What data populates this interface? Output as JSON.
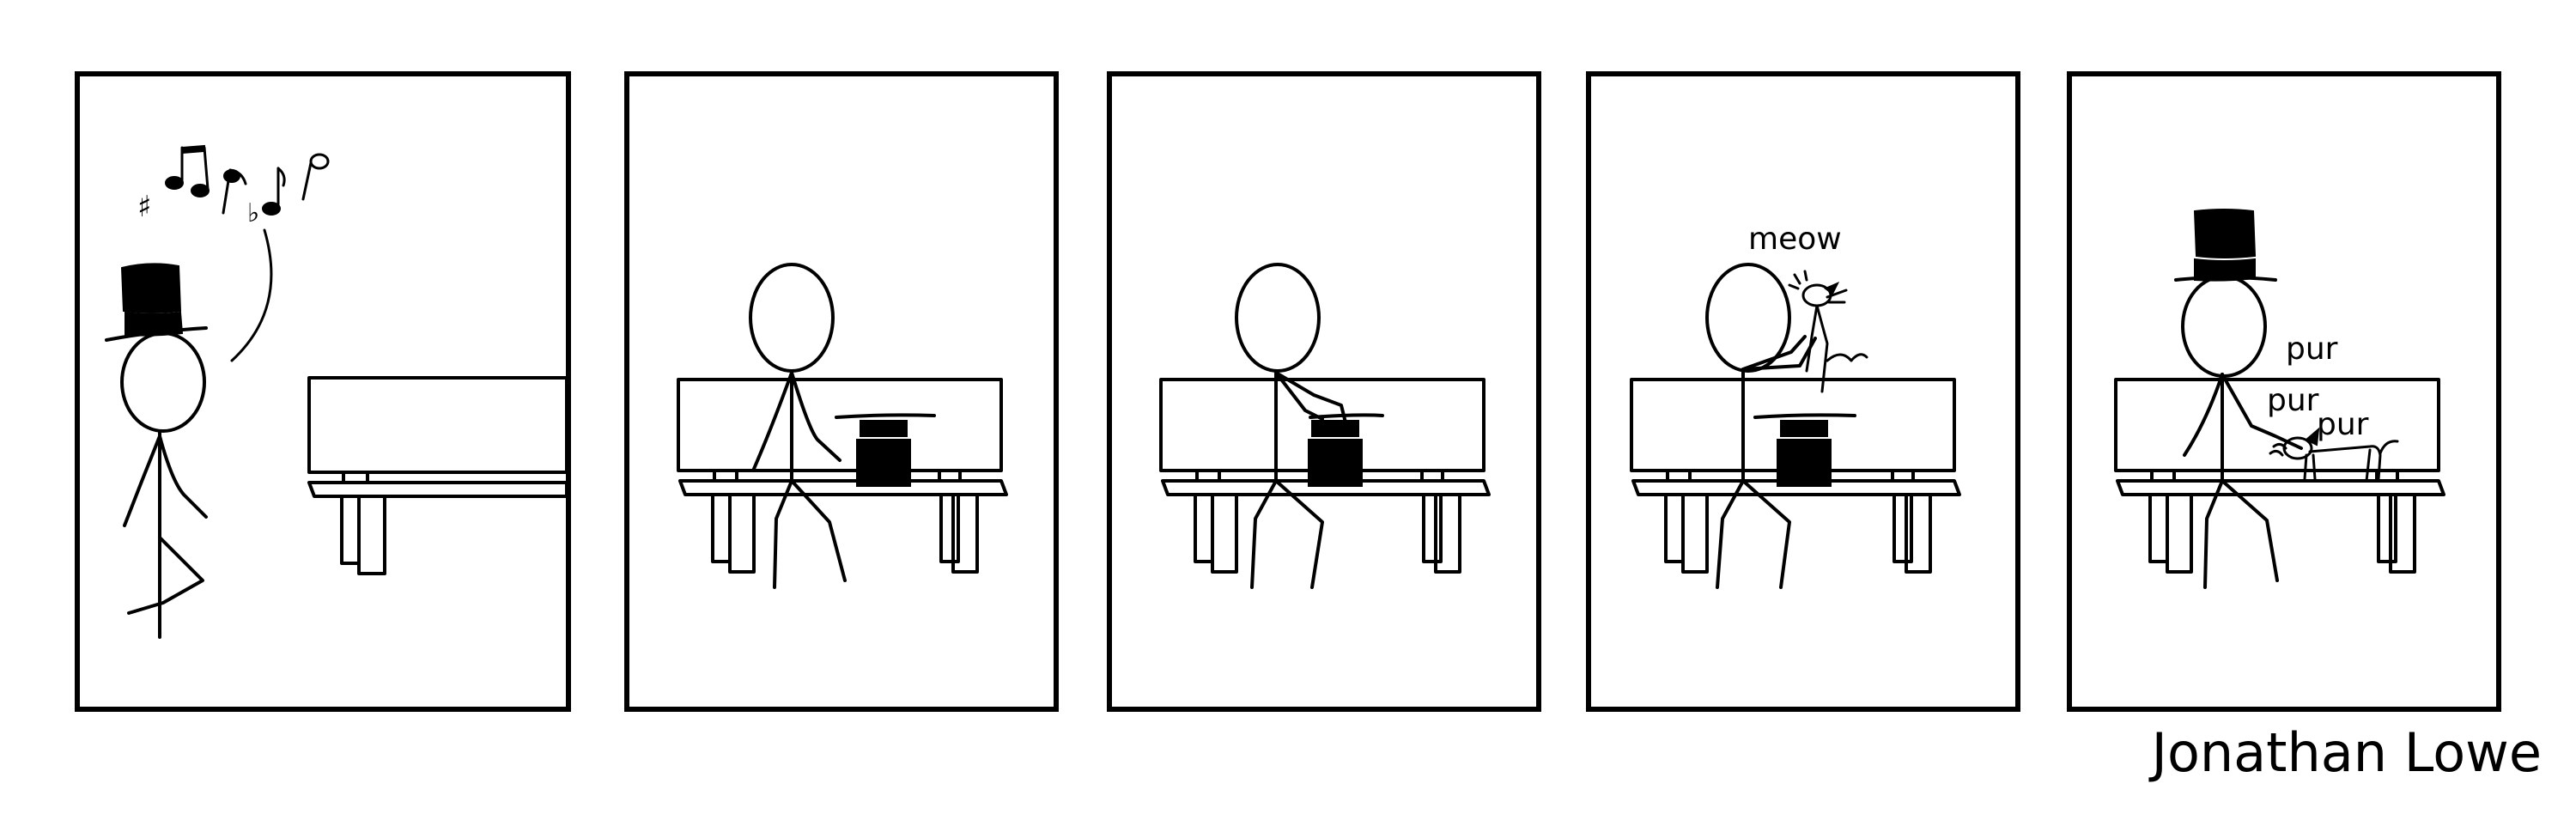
{
  "comic": {
    "sounds": {
      "meow": "meow",
      "pur1": "pur",
      "pur2": "pur",
      "pur3": "pur"
    },
    "music_symbols": {
      "sharp": "♯",
      "flat": "♭"
    },
    "credit": "Jonathan Lowe"
  },
  "icons": [
    "top-hat-icon",
    "music-notes-icon",
    "bench-icon",
    "cat-icon",
    "stick-figure-icon"
  ],
  "colors": {
    "ink": "#000000",
    "background": "#ffffff"
  }
}
